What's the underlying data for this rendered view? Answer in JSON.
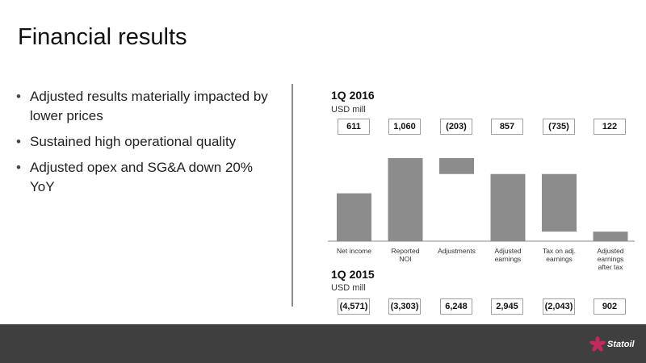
{
  "page": {
    "title": "Financial results",
    "bullets": [
      "Adjusted results materially impacted by lower prices",
      "Sustained high operational quality",
      "Adjusted opex and SG&A down 20% YoY"
    ]
  },
  "chart_data": {
    "type": "bar",
    "subtype": "waterfall",
    "categories": [
      "Net income",
      "Reported NOI",
      "Adjustments",
      "Adjusted earnings",
      "Tax on adj. earnings",
      "Adjusted earnings after tax"
    ],
    "periods": [
      {
        "label": "1Q 2016",
        "unit": "USD mill",
        "values": [
          "611",
          "1,060",
          "(203)",
          "857",
          "(735)",
          "122"
        ]
      },
      {
        "label": "1Q 2015",
        "unit": "USD mill",
        "values": [
          "(4,571)",
          "(3,303)",
          "6,248",
          "2,945",
          "(2,043)",
          "902"
        ]
      }
    ],
    "bars": [
      {
        "category": "Net income",
        "start": 0,
        "end": 611
      },
      {
        "category": "Reported NOI",
        "start": 0,
        "end": 1060
      },
      {
        "category": "Adjustments",
        "start": 1060,
        "end": 857
      },
      {
        "category": "Adjusted earnings",
        "start": 0,
        "end": 857
      },
      {
        "category": "Tax on adj. earnings",
        "start": 857,
        "end": 122
      },
      {
        "category": "Adjusted earnings after tax",
        "start": 0,
        "end": 122
      }
    ],
    "ylim": [
      0,
      1060
    ],
    "bar_color": "#8c8c8c",
    "grid": false,
    "legend": "none"
  },
  "brand": {
    "logo_text": "Statoil",
    "footer_color": "#3f3f3f",
    "logo_color": "#c4285e"
  }
}
